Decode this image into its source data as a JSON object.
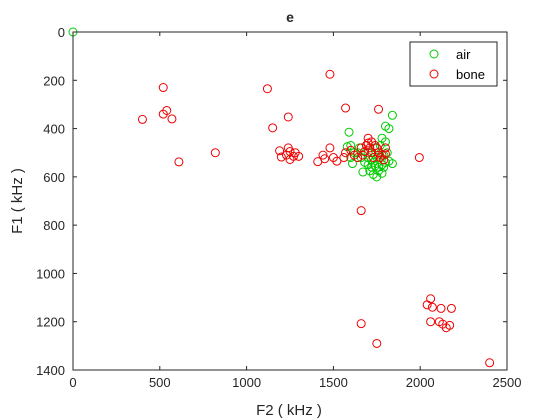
{
  "chart_data": {
    "type": "scatter",
    "title": "e",
    "xlabel": "F2 ( kHz )",
    "ylabel": "F1 ( kHz )",
    "xlim": [
      0,
      2500
    ],
    "ylim": [
      0,
      1400
    ],
    "y_reversed": true,
    "x_ticks": [
      0,
      500,
      1000,
      1500,
      2000,
      2500
    ],
    "y_ticks": [
      0,
      200,
      400,
      600,
      800,
      1000,
      1200,
      1400
    ],
    "grid": false,
    "legend_position": "top-right",
    "series": [
      {
        "name": "air",
        "color": "#00cc00",
        "marker": "circle",
        "points": [
          [
            0,
            0
          ],
          [
            1590,
            415
          ],
          [
            1800,
            390
          ],
          [
            1820,
            400
          ],
          [
            1840,
            345
          ],
          [
            1600,
            470
          ],
          [
            1580,
            475
          ],
          [
            1640,
            500
          ],
          [
            1660,
            520
          ],
          [
            1680,
            540
          ],
          [
            1700,
            550
          ],
          [
            1720,
            560
          ],
          [
            1740,
            555
          ],
          [
            1760,
            560
          ],
          [
            1780,
            550
          ],
          [
            1800,
            540
          ],
          [
            1820,
            535
          ],
          [
            1840,
            545
          ],
          [
            1710,
            575
          ],
          [
            1730,
            590
          ],
          [
            1750,
            600
          ],
          [
            1760,
            575
          ],
          [
            1780,
            585
          ],
          [
            1670,
            580
          ],
          [
            1720,
            530
          ],
          [
            1750,
            520
          ],
          [
            1790,
            510
          ],
          [
            1810,
            500
          ],
          [
            1700,
            500
          ],
          [
            1690,
            470
          ],
          [
            1740,
            480
          ],
          [
            1770,
            470
          ],
          [
            1780,
            440
          ],
          [
            1800,
            455
          ],
          [
            1650,
            480
          ],
          [
            1620,
            500
          ],
          [
            1600,
            520
          ],
          [
            1610,
            545
          ],
          [
            1760,
            510
          ],
          [
            1730,
            540
          ],
          [
            1700,
            520
          ],
          [
            1790,
            560
          ]
        ]
      },
      {
        "name": "bone",
        "color": "#ee0000",
        "marker": "circle",
        "points": [
          [
            520,
            230
          ],
          [
            1480,
            175
          ],
          [
            1120,
            235
          ],
          [
            1570,
            315
          ],
          [
            1760,
            320
          ],
          [
            540,
            325
          ],
          [
            520,
            340
          ],
          [
            570,
            360
          ],
          [
            400,
            362
          ],
          [
            1240,
            352
          ],
          [
            1150,
            397
          ],
          [
            610,
            538
          ],
          [
            820,
            500
          ],
          [
            1190,
            492
          ],
          [
            1200,
            518
          ],
          [
            1230,
            510
          ],
          [
            1240,
            480
          ],
          [
            1250,
            495
          ],
          [
            1250,
            528
          ],
          [
            1270,
            515
          ],
          [
            1280,
            500
          ],
          [
            1300,
            515
          ],
          [
            1410,
            537
          ],
          [
            1440,
            510
          ],
          [
            1450,
            525
          ],
          [
            1480,
            480
          ],
          [
            1500,
            520
          ],
          [
            1520,
            535
          ],
          [
            1560,
            520
          ],
          [
            1570,
            500
          ],
          [
            1600,
            490
          ],
          [
            1620,
            510
          ],
          [
            1640,
            520
          ],
          [
            1660,
            480
          ],
          [
            1670,
            510
          ],
          [
            1680,
            495
          ],
          [
            1690,
            470
          ],
          [
            1700,
            460
          ],
          [
            1710,
            480
          ],
          [
            1720,
            500
          ],
          [
            1730,
            520
          ],
          [
            1740,
            470
          ],
          [
            1750,
            480
          ],
          [
            1760,
            500
          ],
          [
            1770,
            520
          ],
          [
            1780,
            510
          ],
          [
            1790,
            530
          ],
          [
            1800,
            505
          ],
          [
            1720,
            455
          ],
          [
            1700,
            440
          ],
          [
            1800,
            480
          ],
          [
            1995,
            520
          ],
          [
            1660,
            740
          ],
          [
            2060,
            1105
          ],
          [
            2040,
            1130
          ],
          [
            2070,
            1140
          ],
          [
            2120,
            1145
          ],
          [
            2180,
            1145
          ],
          [
            2060,
            1200
          ],
          [
            2110,
            1200
          ],
          [
            2130,
            1210
          ],
          [
            2150,
            1225
          ],
          [
            2170,
            1215
          ],
          [
            1660,
            1208
          ],
          [
            1750,
            1290
          ],
          [
            2400,
            1370
          ]
        ]
      }
    ]
  }
}
